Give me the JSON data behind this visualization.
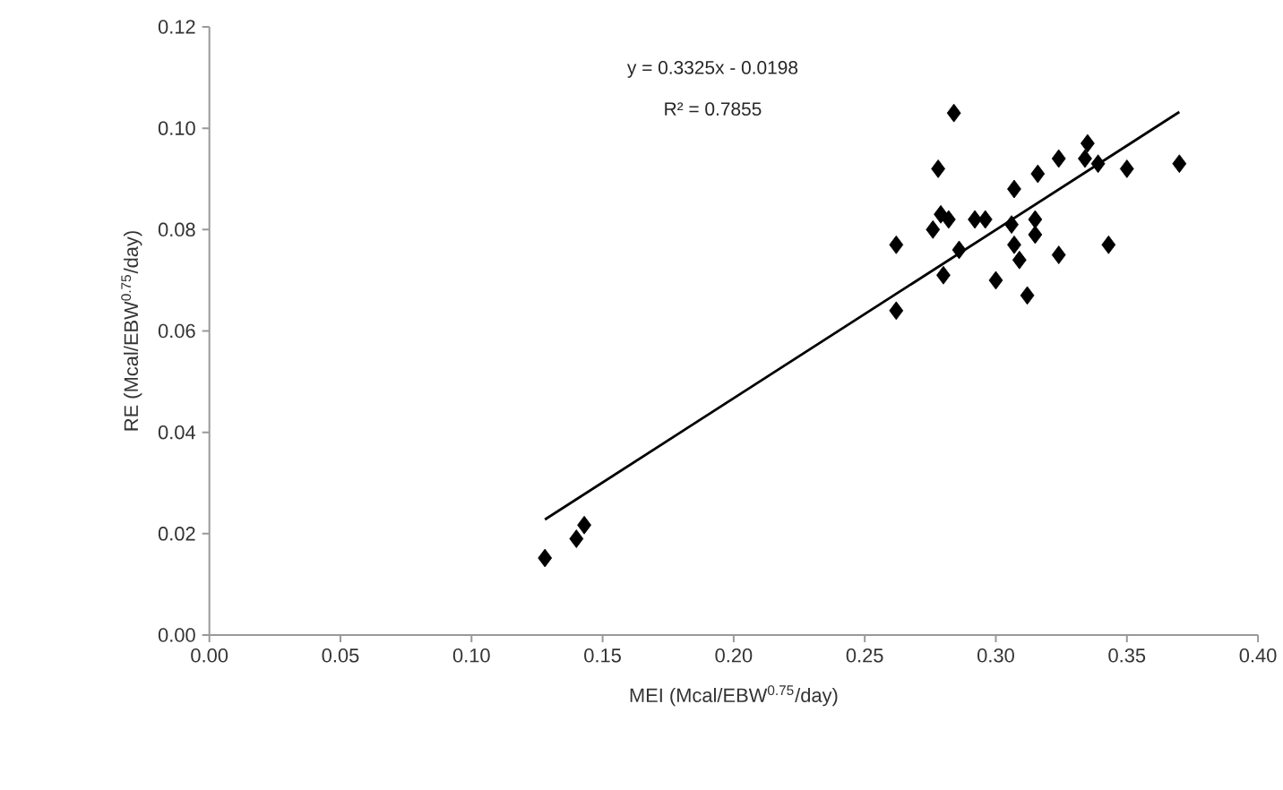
{
  "chart_data": {
    "type": "scatter",
    "xlabel": "MEI (Mcal/EBW$^{0.75}$/day)",
    "ylabel": "RE (Mcal/EBW$^{0.75}$/day)",
    "annotations": [
      "y = 0.3325x - 0.0198",
      "R² = 0.7855"
    ],
    "xlim": [
      0,
      0.4
    ],
    "xticks": [
      {
        "value": 0,
        "label": "0.00"
      },
      0.05,
      {
        "value": 0.1,
        "label": "0.10"
      },
      0.15,
      {
        "value": 0.2,
        "label": "0.20"
      },
      0.25,
      {
        "value": 0.3,
        "label": "0.30"
      },
      0.35,
      {
        "value": 0.4,
        "label": "0.40"
      }
    ],
    "ylim": [
      0,
      0.12
    ],
    "yticks": [
      {
        "value": 0,
        "label": "0.00"
      },
      0.02,
      0.04,
      0.06,
      0.08,
      {
        "value": 0.1,
        "label": "0.10"
      },
      0.12
    ],
    "grid": false,
    "series": [
      {
        "marker": "diamond",
        "color": "#000000",
        "x": [
          0.128,
          0.14,
          0.143,
          0.262,
          0.262,
          0.278,
          0.284,
          0.276,
          0.279,
          0.282,
          0.28,
          0.286,
          0.292,
          0.296,
          0.3,
          0.306,
          0.307,
          0.307,
          0.309,
          0.312,
          0.315,
          0.315,
          0.316,
          0.324,
          0.324,
          0.335,
          0.334,
          0.339,
          0.343,
          0.35,
          0.37
        ],
        "values": [
          0.0152,
          0.019,
          0.0217,
          0.064,
          0.077,
          0.092,
          0.103,
          0.08,
          0.083,
          0.082,
          0.071,
          0.076,
          0.082,
          0.082,
          0.07,
          0.081,
          0.088,
          0.077,
          0.074,
          0.067,
          0.082,
          0.079,
          0.091,
          0.075,
          0.094,
          0.097,
          0.094,
          0.093,
          0.077,
          0.092,
          0.093
        ]
      },
      {
        "type": "line",
        "marker": "none",
        "color": "#000000",
        "x": [
          0.128,
          0.37
        ],
        "values": [
          0.0228,
          0.1032
        ]
      }
    ]
  }
}
